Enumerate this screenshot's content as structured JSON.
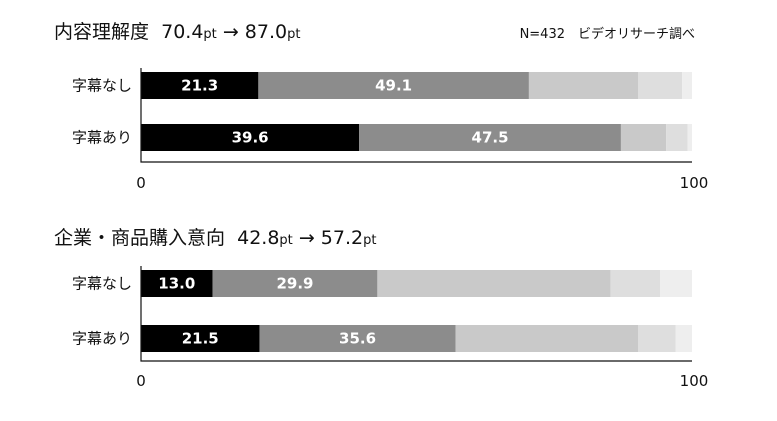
{
  "note": "N=432　ビデオリサーチ調べ",
  "palette": [
    "#000000",
    "#8c8c8c",
    "#c9c9c9",
    "#dedede",
    "#eeeeee"
  ],
  "chart_data": [
    {
      "type": "bar",
      "stacked": true,
      "orientation": "horizontal",
      "title": {
        "label": "内容理解度",
        "before": "70.4",
        "before_unit": "pt",
        "arrow": "→",
        "after": "87.0",
        "after_unit": "pt"
      },
      "categories": [
        "字幕なし",
        "字幕あり"
      ],
      "series": [
        {
          "values": [
            21.3,
            39.6
          ],
          "labels": [
            "21.3",
            "39.6"
          ]
        },
        {
          "values": [
            49.1,
            47.5
          ],
          "labels": [
            "49.1",
            "47.5"
          ]
        },
        {
          "values": [
            19.8,
            8.2
          ],
          "labels": [
            "",
            ""
          ]
        },
        {
          "values": [
            8.0,
            3.9
          ],
          "labels": [
            "",
            ""
          ]
        },
        {
          "values": [
            1.8,
            0.8
          ],
          "labels": [
            "",
            ""
          ]
        }
      ],
      "xlim": [
        0,
        100
      ],
      "ticks": [
        "0",
        "100"
      ],
      "grid": false,
      "legend": "none"
    },
    {
      "type": "bar",
      "stacked": true,
      "orientation": "horizontal",
      "title": {
        "label": "企業・商品購入意向",
        "before": "42.8",
        "before_unit": "pt",
        "arrow": "→",
        "after": "57.2",
        "after_unit": "pt"
      },
      "categories": [
        "字幕なし",
        "字幕あり"
      ],
      "series": [
        {
          "values": [
            13.0,
            21.5
          ],
          "labels": [
            "13.0",
            "21.5"
          ]
        },
        {
          "values": [
            29.9,
            35.6
          ],
          "labels": [
            "29.9",
            "35.6"
          ]
        },
        {
          "values": [
            42.3,
            33.1
          ],
          "labels": [
            "",
            ""
          ]
        },
        {
          "values": [
            9.0,
            6.8
          ],
          "labels": [
            "",
            ""
          ]
        },
        {
          "values": [
            5.8,
            3.0
          ],
          "labels": [
            "",
            ""
          ]
        }
      ],
      "xlim": [
        0,
        100
      ],
      "ticks": [
        "0",
        "100"
      ],
      "grid": false,
      "legend": "none"
    }
  ]
}
